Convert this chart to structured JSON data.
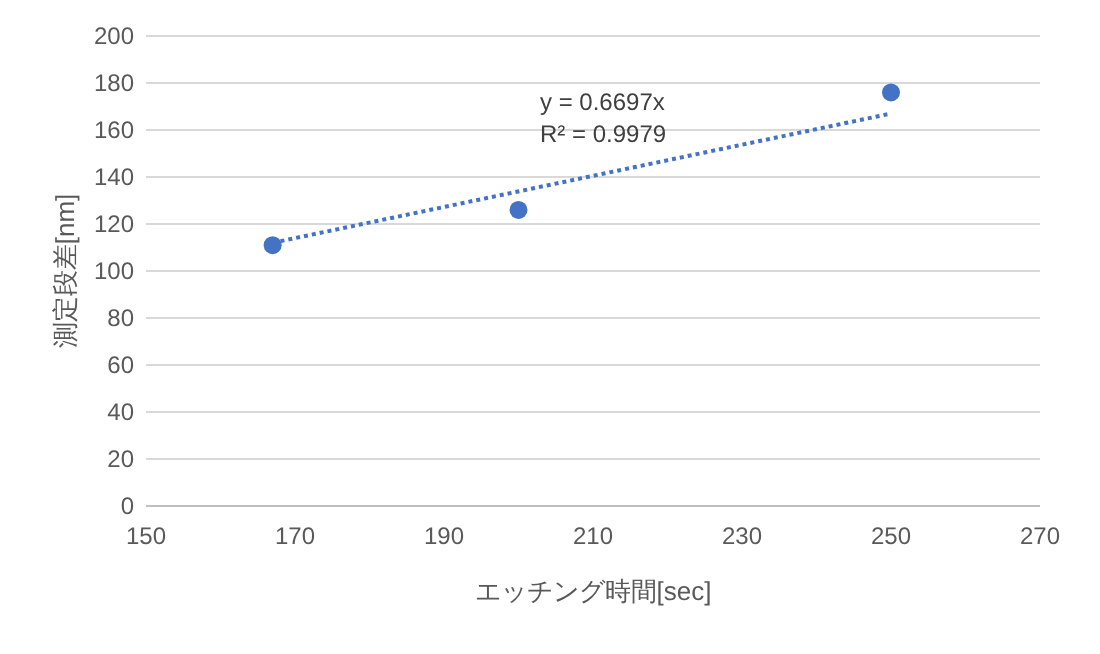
{
  "chart_data": {
    "type": "scatter",
    "xlabel": "エッチング時間[sec]",
    "ylabel": "測定段差[nm]",
    "x": [
      167,
      200,
      250
    ],
    "series": [
      {
        "color": "#4472c4",
        "marker": "circle",
        "values": [
          111,
          126,
          176
        ]
      },
      {
        "type": "line",
        "color": "#4472c4",
        "line_style": "dotted",
        "x": [
          167,
          250
        ],
        "values": [
          112,
          167
        ]
      }
    ],
    "annotations": [
      "y = 0.6697x",
      "R² = 0.9979"
    ],
    "xlim": [
      150,
      270
    ],
    "xticks": [
      150,
      170,
      190,
      210,
      230,
      250,
      270
    ],
    "ylim": [
      0,
      200
    ],
    "yticks": [
      0,
      20,
      40,
      60,
      80,
      100,
      120,
      140,
      160,
      180,
      200
    ],
    "grid": "y"
  }
}
